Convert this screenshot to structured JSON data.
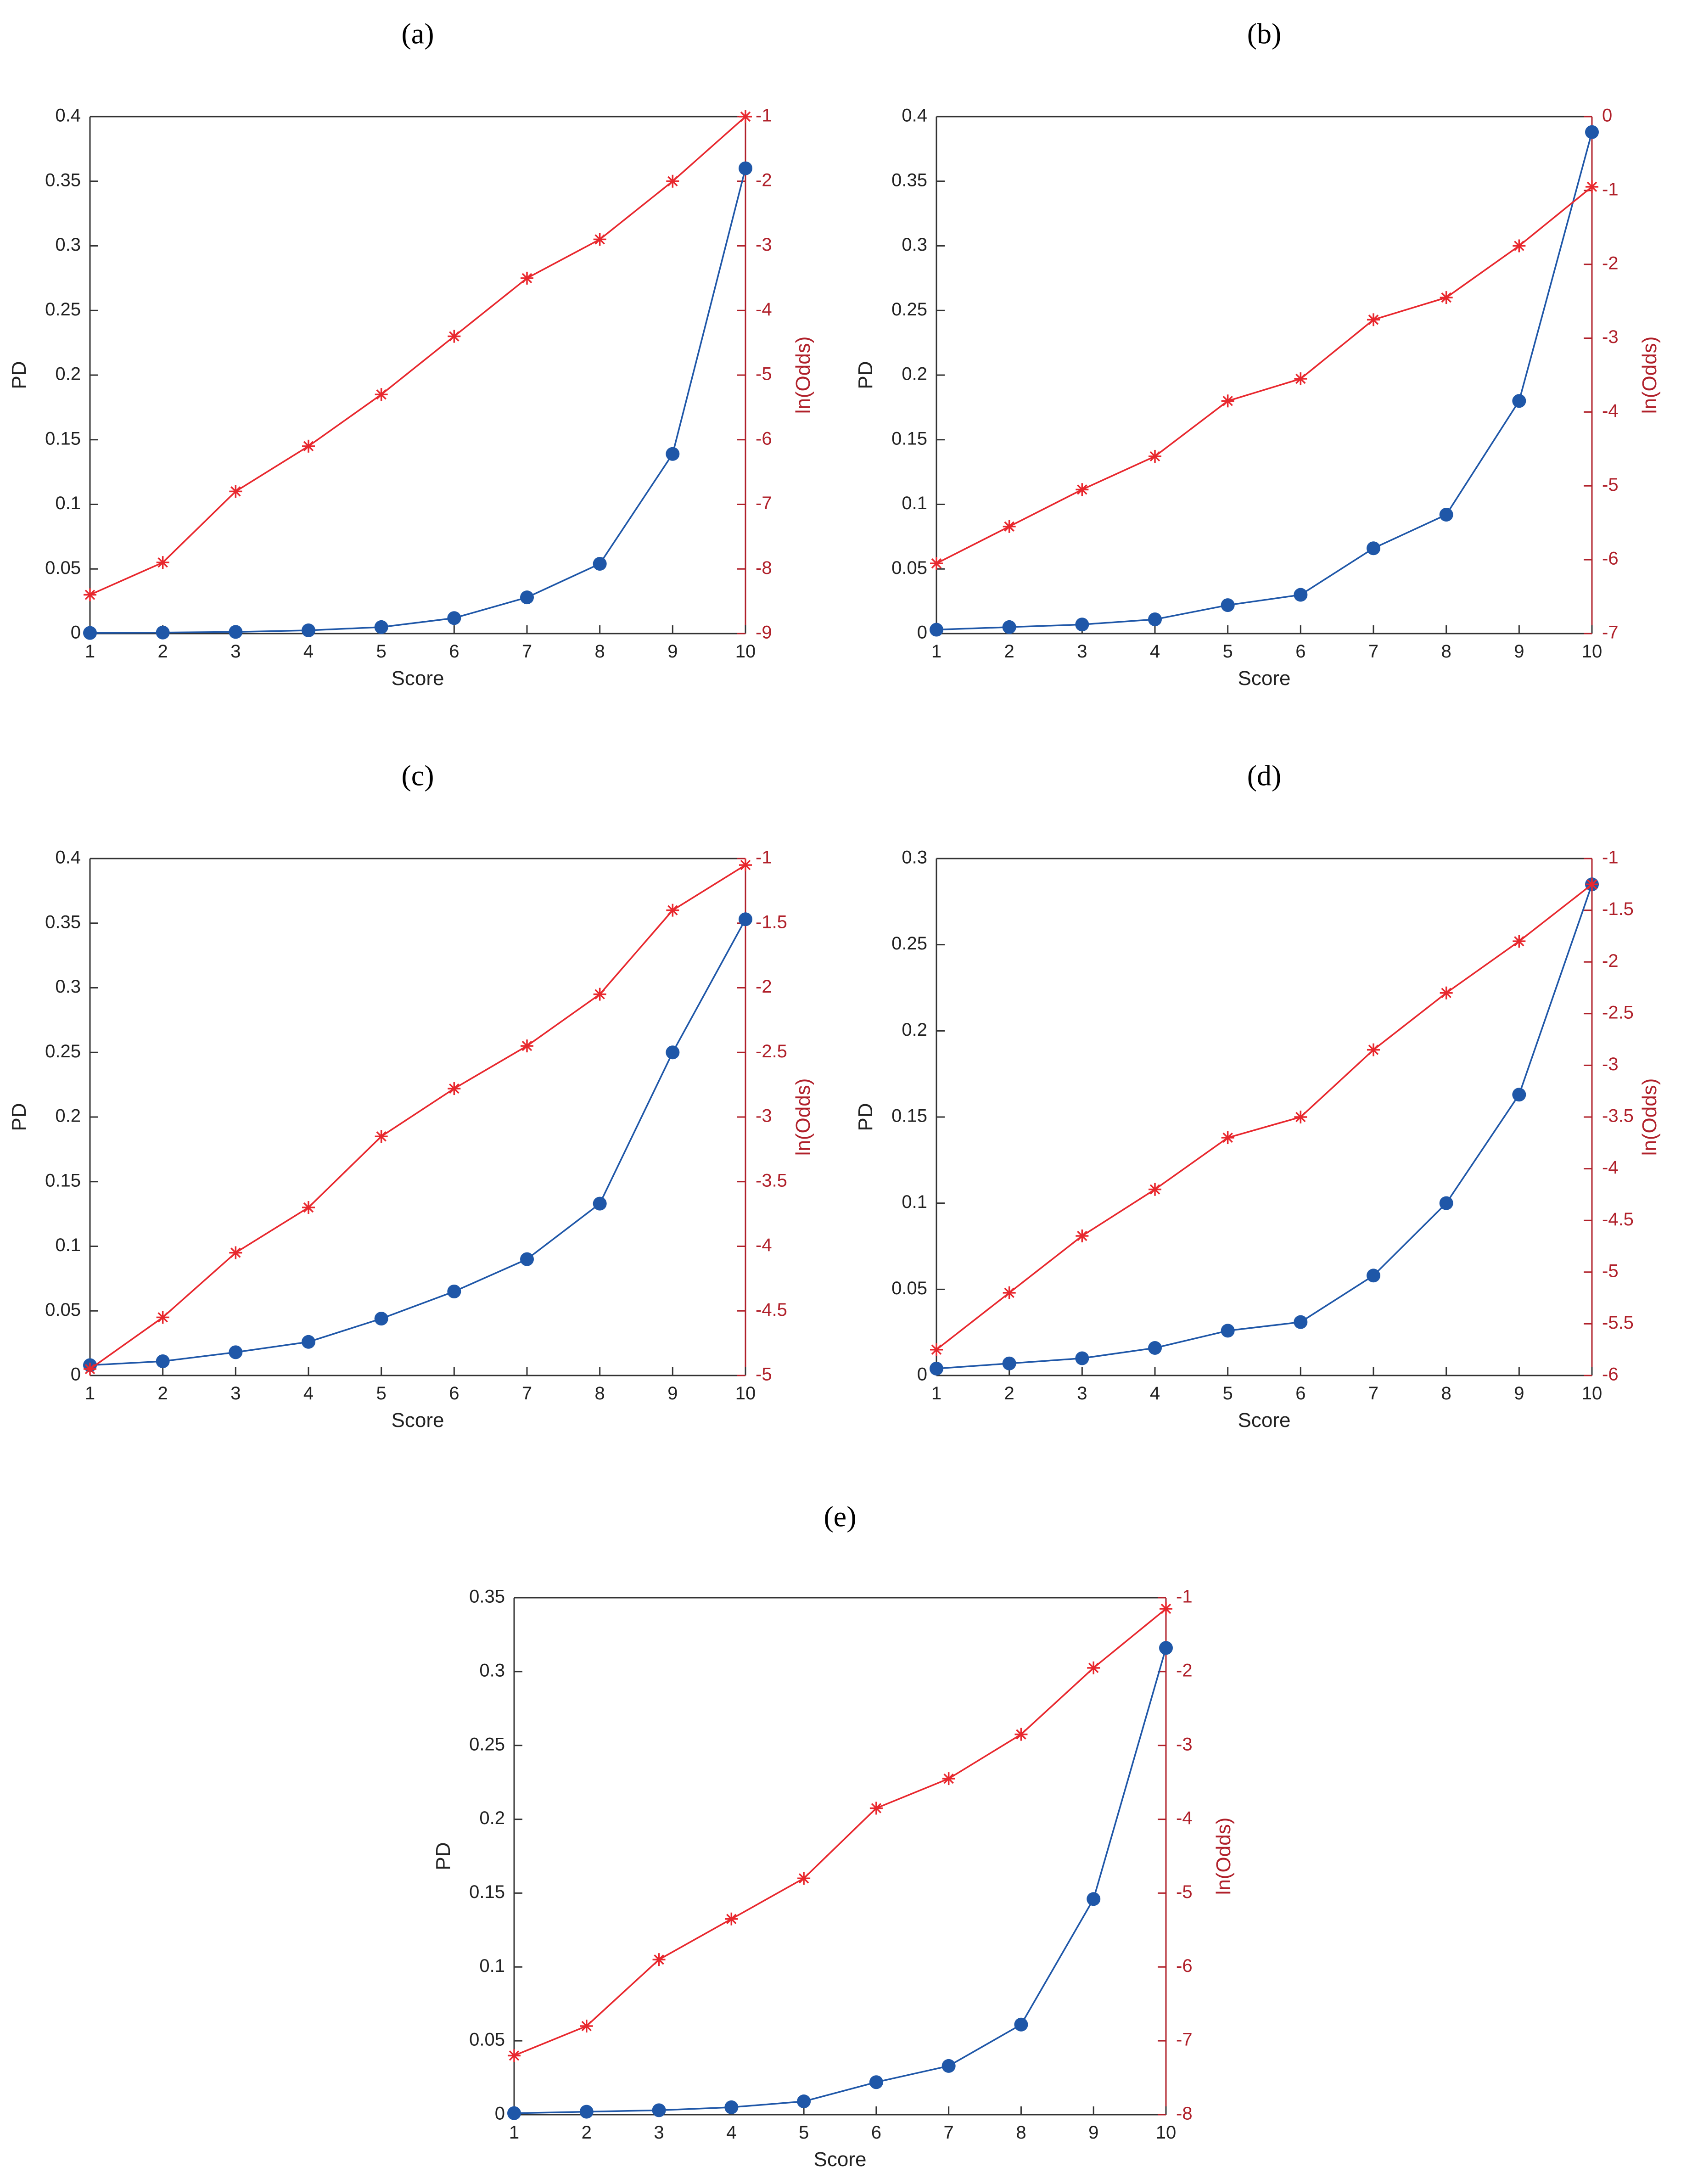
{
  "colors": {
    "pd": "#1f57a8",
    "odds": "#e8282e",
    "odds_axis": "#b0202a",
    "axis": "#333333"
  },
  "chart_data": [
    {
      "type": "line",
      "title": "(a)",
      "xlabel": "Score",
      "ylabel": "PD",
      "ylabel_right": "ln(Odds)",
      "x": [
        1,
        2,
        3,
        4,
        5,
        6,
        7,
        8,
        9,
        10
      ],
      "xlim": [
        1,
        10
      ],
      "ylim": [
        0,
        0.4
      ],
      "yticks": [
        0,
        0.05,
        0.1,
        0.15,
        0.2,
        0.25,
        0.3,
        0.35,
        0.4
      ],
      "ylim_right": [
        -9,
        -1
      ],
      "yticks_right": [
        -9,
        -8,
        -7,
        -6,
        -5,
        -4,
        -3,
        -2,
        -1
      ],
      "series": [
        {
          "name": "PD",
          "axis": "left",
          "marker": "circle",
          "values": [
            0.0005,
            0.0008,
            0.0013,
            0.0025,
            0.005,
            0.012,
            0.028,
            0.054,
            0.139,
            0.36
          ]
        },
        {
          "name": "ln(Odds)",
          "axis": "right",
          "marker": "asterisk",
          "values": [
            -8.4,
            -7.9,
            -6.8,
            -6.1,
            -5.3,
            -4.4,
            -3.5,
            -2.9,
            -2.0,
            -1.0
          ]
        }
      ]
    },
    {
      "type": "line",
      "title": "(b)",
      "xlabel": "Score",
      "ylabel": "PD",
      "ylabel_right": "ln(Odds)",
      "x": [
        1,
        2,
        3,
        4,
        5,
        6,
        7,
        8,
        9,
        10
      ],
      "xlim": [
        1,
        10
      ],
      "ylim": [
        0,
        0.4
      ],
      "yticks": [
        0,
        0.05,
        0.1,
        0.15,
        0.2,
        0.25,
        0.3,
        0.35,
        0.4
      ],
      "ylim_right": [
        -7,
        0
      ],
      "yticks_right": [
        -7,
        -6,
        -5,
        -4,
        -3,
        -2,
        -1,
        0
      ],
      "series": [
        {
          "name": "PD",
          "axis": "left",
          "marker": "circle",
          "values": [
            0.003,
            0.005,
            0.007,
            0.011,
            0.022,
            0.03,
            0.066,
            0.092,
            0.18,
            0.388
          ]
        },
        {
          "name": "ln(Odds)",
          "axis": "right",
          "marker": "asterisk",
          "values": [
            -6.05,
            -5.55,
            -5.05,
            -4.6,
            -3.85,
            -3.55,
            -2.75,
            -2.45,
            -1.75,
            -0.95
          ]
        }
      ]
    },
    {
      "type": "line",
      "title": "(c)",
      "xlabel": "Score",
      "ylabel": "PD",
      "ylabel_right": "ln(Odds)",
      "x": [
        1,
        2,
        3,
        4,
        5,
        6,
        7,
        8,
        9,
        10
      ],
      "xlim": [
        1,
        10
      ],
      "ylim": [
        0,
        0.4
      ],
      "yticks": [
        0,
        0.05,
        0.1,
        0.15,
        0.2,
        0.25,
        0.3,
        0.35,
        0.4
      ],
      "ylim_right": [
        -5,
        -1
      ],
      "yticks_right": [
        -5,
        -4.5,
        -4,
        -3.5,
        -3,
        -2.5,
        -2,
        -1.5,
        -1
      ],
      "series": [
        {
          "name": "PD",
          "axis": "left",
          "marker": "circle",
          "values": [
            0.008,
            0.011,
            0.018,
            0.026,
            0.044,
            0.065,
            0.09,
            0.133,
            0.25,
            0.353
          ]
        },
        {
          "name": "ln(Odds)",
          "axis": "right",
          "marker": "asterisk",
          "values": [
            -4.95,
            -4.55,
            -4.05,
            -3.7,
            -3.15,
            -2.78,
            -2.45,
            -2.05,
            -1.4,
            -1.05
          ]
        }
      ]
    },
    {
      "type": "line",
      "title": "(d)",
      "xlabel": "Score",
      "ylabel": "PD",
      "ylabel_right": "ln(Odds)",
      "x": [
        1,
        2,
        3,
        4,
        5,
        6,
        7,
        8,
        9,
        10
      ],
      "xlim": [
        1,
        10
      ],
      "ylim": [
        0,
        0.3
      ],
      "yticks": [
        0,
        0.05,
        0.1,
        0.15,
        0.2,
        0.25,
        0.3
      ],
      "ylim_right": [
        -6,
        -1
      ],
      "yticks_right": [
        -6,
        -5.5,
        -5,
        -4.5,
        -4,
        -3.5,
        -3,
        -2.5,
        -2,
        -1.5,
        -1
      ],
      "series": [
        {
          "name": "PD",
          "axis": "left",
          "marker": "circle",
          "values": [
            0.004,
            0.007,
            0.01,
            0.016,
            0.026,
            0.031,
            0.058,
            0.1,
            0.163,
            0.285
          ]
        },
        {
          "name": "ln(Odds)",
          "axis": "right",
          "marker": "asterisk",
          "values": [
            -5.75,
            -5.2,
            -4.65,
            -4.2,
            -3.7,
            -3.5,
            -2.85,
            -2.3,
            -1.8,
            -1.25
          ]
        }
      ]
    },
    {
      "type": "line",
      "title": "(e)",
      "xlabel": "Score",
      "ylabel": "PD",
      "ylabel_right": "ln(Odds)",
      "x": [
        1,
        2,
        3,
        4,
        5,
        6,
        7,
        8,
        9,
        10
      ],
      "xlim": [
        1,
        10
      ],
      "ylim": [
        0,
        0.35
      ],
      "yticks": [
        0,
        0.05,
        0.1,
        0.15,
        0.2,
        0.25,
        0.3,
        0.35
      ],
      "ylim_right": [
        -8,
        -1
      ],
      "yticks_right": [
        -8,
        -7,
        -6,
        -5,
        -4,
        -3,
        -2,
        -1
      ],
      "series": [
        {
          "name": "PD",
          "axis": "left",
          "marker": "circle",
          "values": [
            0.001,
            0.002,
            0.003,
            0.005,
            0.009,
            0.022,
            0.033,
            0.061,
            0.146,
            0.316
          ]
        },
        {
          "name": "ln(Odds)",
          "axis": "right",
          "marker": "asterisk",
          "values": [
            -7.2,
            -6.8,
            -5.9,
            -5.35,
            -4.8,
            -3.85,
            -3.45,
            -2.85,
            -1.95,
            -1.15
          ]
        }
      ]
    }
  ]
}
